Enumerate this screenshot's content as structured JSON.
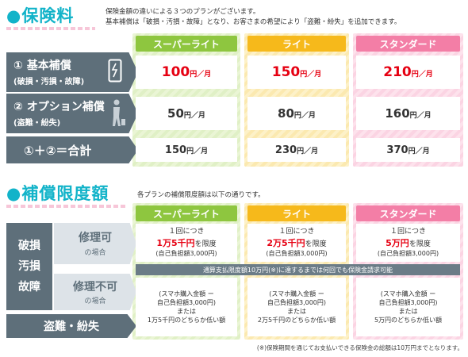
{
  "fee": {
    "title": "保険料",
    "intro_line1": "保険金額の違いによる３つのプランがございます。",
    "intro_line2": "基本補償は「破損・汚損・故障」となり、お客さまの希望により「盗難・紛失」を追加できます。",
    "plans": [
      "スーパーライト",
      "ライト",
      "スタンダード"
    ],
    "rows": [
      {
        "label": "① 基本補償",
        "sub": "(破損・汚損・故障)",
        "prices": [
          "100",
          "150",
          "210"
        ]
      },
      {
        "label": "② オプション補償",
        "sub": "(盗難・紛失)",
        "prices": [
          "50",
          "80",
          "160"
        ]
      },
      {
        "label": "①＋②＝合計",
        "sub": "",
        "prices": [
          "150",
          "230",
          "370"
        ]
      }
    ],
    "unit": "円／月"
  },
  "limit": {
    "title": "補償限度額",
    "intro": "各プランの補償限度額は以下の通りです。",
    "plans": [
      "スーパーライト",
      "ライト",
      "スタンダード"
    ],
    "damage_label": [
      "破損",
      "汚損",
      "故障"
    ],
    "repairable_label": "修理可",
    "repairable_sub": "の場合",
    "unrepairable_label": "修理不可",
    "unrepairable_sub": "の場合",
    "theft_label": "盗難・紛失",
    "per_time": "１回につき",
    "amounts": [
      "1万5千円",
      "2万5千円",
      "5万円"
    ],
    "limit_suffix": "を限度",
    "deductible": "(自己負担額3,000円)",
    "annual_note": "通算支払限度額10万円(※)に達するまでは何回でも保険金請求可能",
    "replace_line1": "(スマホ購入金額 ー",
    "replace_line2": "自己負担額3,000円)",
    "or_text": "または",
    "cap_texts": [
      "1万5千円のどちらか低い額",
      "2万5千円のどちらか低い額",
      "5万円のどちらか低い額"
    ],
    "footnote": "(※)保険期間を通じてお支払いできる保険金の総額は10万円までとなります。"
  }
}
